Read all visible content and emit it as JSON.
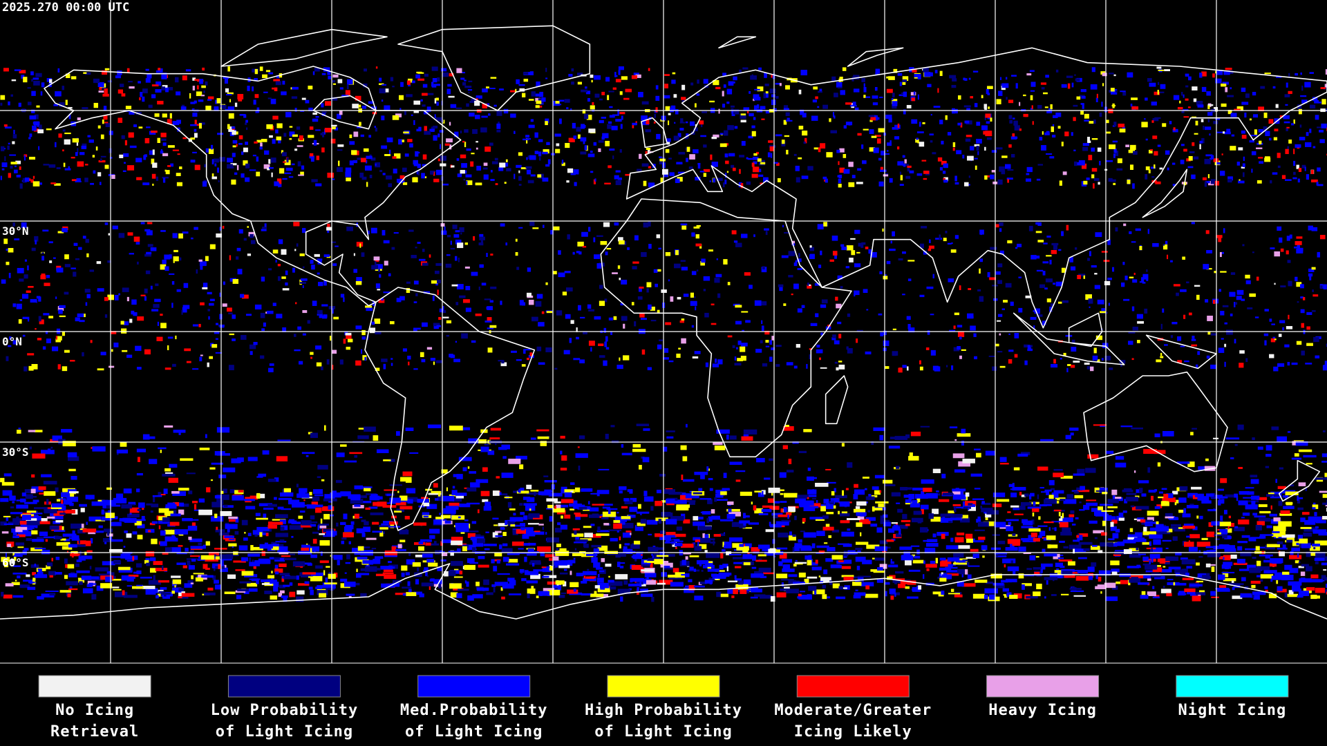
{
  "timestamp": "2025.270 00:00 UTC",
  "latitude_labels": [
    {
      "label": "30°N",
      "lat": 30
    },
    {
      "label": "0°N",
      "lat": 0
    },
    {
      "label": "30°S",
      "lat": -30
    },
    {
      "label": "60°S",
      "lat": -60
    }
  ],
  "legend": [
    {
      "label_lines": [
        "No Icing",
        "Retrieval"
      ],
      "color": "#f2f2f2"
    },
    {
      "label_lines": [
        "Low Probability",
        "of Light Icing"
      ],
      "color": "#000080"
    },
    {
      "label_lines": [
        "Med.Probability",
        "of Light Icing"
      ],
      "color": "#0000ff"
    },
    {
      "label_lines": [
        "High Probability",
        "of Light Icing"
      ],
      "color": "#ffff00"
    },
    {
      "label_lines": [
        "Moderate/Greater",
        "Icing Likely"
      ],
      "color": "#ff0000"
    },
    {
      "label_lines": [
        "Heavy Icing"
      ],
      "color": "#e8a0e8"
    },
    {
      "label_lines": [
        "Night Icing"
      ],
      "color": "#00ffff"
    }
  ]
}
